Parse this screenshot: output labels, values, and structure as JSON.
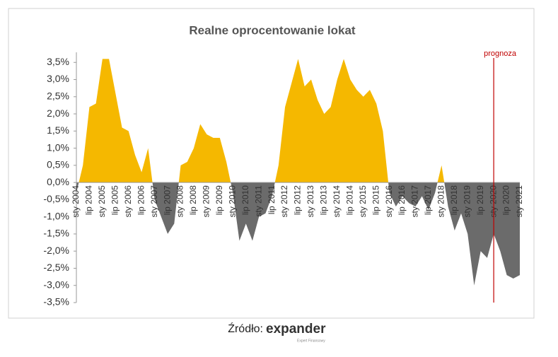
{
  "chart_data": {
    "type": "area",
    "title": "Realne oprocentowanie lokat",
    "categories": [
      "sty 2004",
      null,
      "lip 2004",
      null,
      "sty 2005",
      null,
      "lip 2005",
      null,
      "sty 2006",
      null,
      "lip 2006",
      null,
      "sty 2007",
      null,
      "lip 2007",
      null,
      "sty 2008",
      null,
      "lip 2008",
      null,
      "sty 2009",
      null,
      "lip 2009",
      null,
      "sty 2010",
      null,
      "lip 2010",
      null,
      "sty 2011",
      null,
      "lip 2011",
      null,
      "sty 2012",
      null,
      "lip 2012",
      null,
      "sty 2013",
      null,
      "lip 2013",
      null,
      "sty 2014",
      null,
      "lip 2014",
      null,
      "sty 2015",
      null,
      "lip 2015",
      null,
      "sty 2016",
      null,
      "lip 2016",
      null,
      "sty 2017",
      null,
      "lip 2017",
      null,
      "sty 2018",
      null,
      "lip 2018",
      null,
      "sty 2019",
      null,
      "lip 2019",
      null,
      "sty 2020",
      null,
      "lip 2020",
      null,
      "sty 2021"
    ],
    "series": [
      {
        "positive_color": "#f5b800",
        "negative_color": "#6b6b6b",
        "values": [
          -0.3,
          0.5,
          2.2,
          2.3,
          3.6,
          3.6,
          2.6,
          1.6,
          1.5,
          0.8,
          0.3,
          1.0,
          -0.5,
          -1.0,
          -1.5,
          -1.2,
          0.5,
          0.6,
          1.0,
          1.7,
          1.4,
          1.3,
          1.3,
          0.6,
          -0.3,
          -1.7,
          -1.2,
          -1.7,
          -1.0,
          -0.9,
          -0.4,
          0.5,
          2.2,
          2.9,
          3.6,
          2.8,
          3.0,
          2.4,
          2.0,
          2.2,
          3.0,
          3.6,
          3.0,
          2.7,
          2.5,
          2.7,
          2.3,
          1.5,
          -0.3,
          -0.7,
          -0.4,
          -0.6,
          -0.7,
          -0.4,
          -0.8,
          -0.3,
          0.5,
          -0.7,
          -1.4,
          -0.9,
          -1.5,
          -3.0,
          -2.0,
          -2.2,
          -1.5,
          -2.0,
          -2.7,
          -2.8,
          -2.7
        ]
      }
    ],
    "ylim": [
      -3.5,
      4
    ],
    "yticks": [
      {
        "value": -3.5,
        "label": "-3,5%"
      },
      {
        "value": -3,
        "label": "-3,0%"
      },
      {
        "value": -2.5,
        "label": "-2,5%"
      },
      {
        "value": -2,
        "label": "-2,0%"
      },
      {
        "value": -1.5,
        "label": "-1,5%"
      },
      {
        "value": -1,
        "label": "-1,0%"
      },
      {
        "value": -0.5,
        "label": "-0,5%"
      },
      {
        "value": 0,
        "label": "0,0%"
      },
      {
        "value": 0.5,
        "label": "0,5%"
      },
      {
        "value": 1,
        "label": "1,0%"
      },
      {
        "value": 1.5,
        "label": "1,5%"
      },
      {
        "value": 2,
        "label": "2,0%"
      },
      {
        "value": 2.5,
        "label": "2,5%"
      },
      {
        "value": 3,
        "label": "3,0%"
      },
      {
        "value": 3.5,
        "label": "3,5%"
      }
    ],
    "annotations": [
      {
        "text": "prognoza",
        "category": "sty 2020",
        "color": "#c00000"
      }
    ],
    "source": "Źródło:",
    "logo": "expander",
    "logo_tagline": "Expert Finansowy"
  }
}
